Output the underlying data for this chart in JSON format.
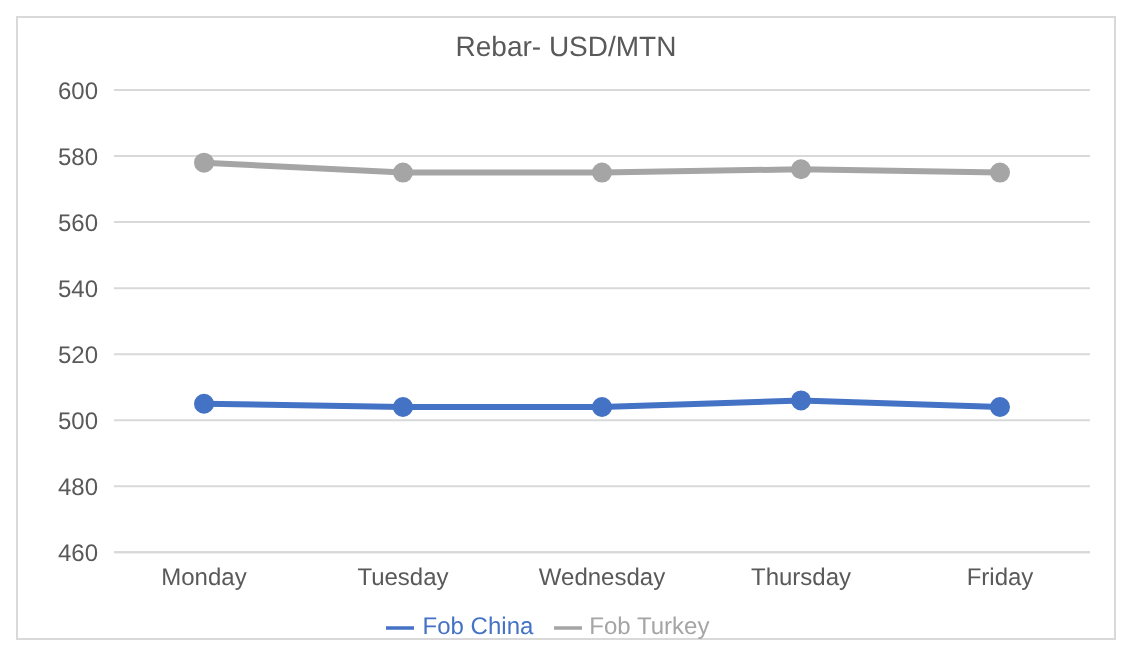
{
  "chart_data": {
    "type": "line",
    "title": "Rebar- USD/MTN",
    "categories": [
      "Monday",
      "Tuesday",
      "Wednesday",
      "Thursday",
      "Friday"
    ],
    "series": [
      {
        "name": "Fob China",
        "color": "#4472c4",
        "values": [
          505,
          504,
          504,
          506,
          504
        ]
      },
      {
        "name": "Fob Turkey",
        "color": "#a5a5a5",
        "values": [
          578,
          575,
          575,
          576,
          575
        ]
      }
    ],
    "ylim": [
      460,
      600
    ],
    "yticks": [
      460,
      480,
      500,
      520,
      540,
      560,
      580,
      600
    ],
    "grid": "y",
    "legend": "bottom",
    "marker": "circle",
    "line_style": "solid"
  }
}
